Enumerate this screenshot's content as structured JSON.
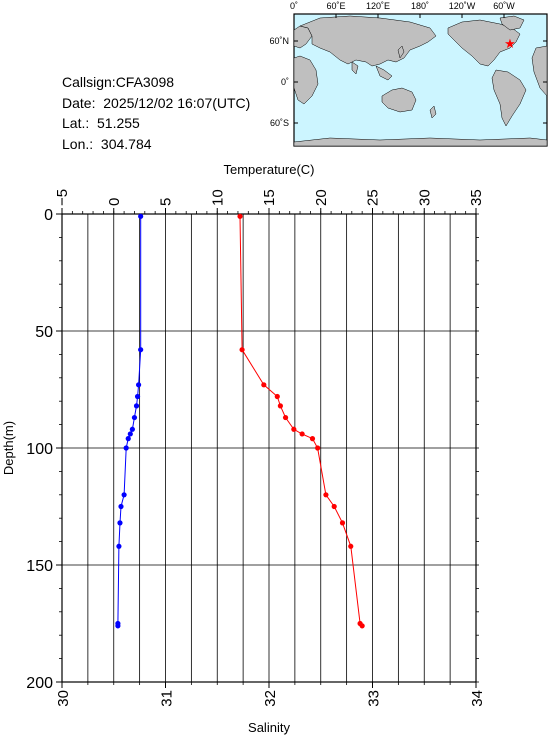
{
  "header": {
    "callsign": "Callsign:CFA3098",
    "date": "Date:  2025/12/02 16:07(UTC)",
    "lat": "Lat.:  51.255",
    "lon": "Lon.:  304.784"
  },
  "map": {
    "top_ticks": [
      "0˚",
      "60˚E",
      "120˚E",
      "180˚",
      "120˚W",
      "60˚W"
    ],
    "lat_ticks": [
      "60˚N",
      "0˚",
      "60˚S"
    ],
    "ocean_color": "#ccf5ff",
    "land_color": "#bfbfbf",
    "marker": "red-star",
    "marker_color": "#ff0000"
  },
  "chart_data": {
    "type": "line",
    "top_axis_label": "Temperature(C)",
    "top_ticks": [
      "−5",
      "0",
      "5",
      "10",
      "15",
      "20",
      "25",
      "30",
      "35"
    ],
    "top_range": [
      -5,
      35
    ],
    "bottom_axis_label": "Salinity",
    "bottom_ticks": [
      "30",
      "31",
      "32",
      "33",
      "34"
    ],
    "bottom_range": [
      30,
      34
    ],
    "ylabel": "Depth(m)",
    "y_ticks": [
      "0",
      "50",
      "100",
      "150",
      "200"
    ],
    "y_range": [
      0,
      200
    ],
    "y_inverted": true,
    "grid": true,
    "series": [
      {
        "axis": "temperature",
        "color": "#ff0000",
        "points": [
          [
            12.2,
            1
          ],
          [
            12.4,
            58
          ],
          [
            14.5,
            73
          ],
          [
            15.8,
            78
          ],
          [
            16.1,
            82
          ],
          [
            16.6,
            87
          ],
          [
            17.4,
            92
          ],
          [
            18.2,
            94
          ],
          [
            19.2,
            96
          ],
          [
            19.7,
            100
          ],
          [
            20.5,
            120
          ],
          [
            21.3,
            125
          ],
          [
            22.1,
            132
          ],
          [
            22.9,
            142
          ],
          [
            23.8,
            175
          ],
          [
            24.0,
            176
          ]
        ]
      },
      {
        "axis": "salinity",
        "color": "#0000ff",
        "points": [
          [
            30.76,
            1
          ],
          [
            30.76,
            58
          ],
          [
            30.74,
            73
          ],
          [
            30.73,
            78
          ],
          [
            30.72,
            82
          ],
          [
            30.7,
            87
          ],
          [
            30.68,
            92
          ],
          [
            30.66,
            94
          ],
          [
            30.64,
            96
          ],
          [
            30.62,
            100
          ],
          [
            30.6,
            120
          ],
          [
            30.57,
            125
          ],
          [
            30.56,
            132
          ],
          [
            30.55,
            142
          ],
          [
            30.54,
            175
          ],
          [
            30.54,
            176
          ]
        ]
      }
    ]
  }
}
